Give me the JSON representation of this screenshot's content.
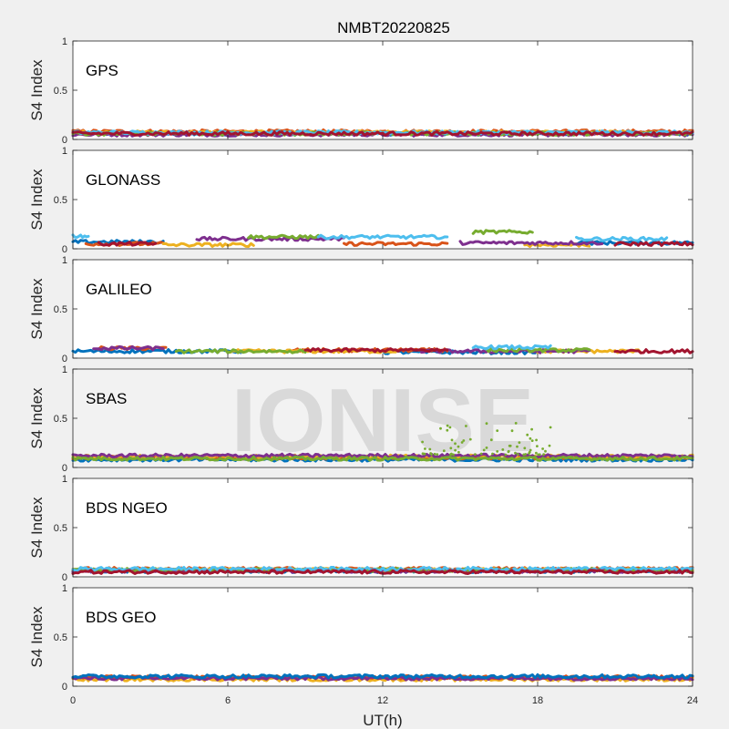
{
  "figure": {
    "title": "NMBT20220825",
    "xlabel": "UT(h)",
    "watermark": "IONISE"
  },
  "chart_data": [
    {
      "type": "scatter",
      "panel": "GPS",
      "ylabel": "S4 Index",
      "xlim": [
        0,
        24
      ],
      "ylim": [
        0,
        1
      ],
      "xticks": [
        0,
        6,
        12,
        18,
        24
      ],
      "yticks": [
        0,
        0.5,
        1
      ],
      "yticklabels": [
        "0",
        "0.5",
        "1"
      ],
      "series_summary": [
        {
          "color": "#0072BD",
          "segments": [
            [
              0,
              24,
              0.06
            ]
          ]
        },
        {
          "color": "#D95319",
          "segments": [
            [
              0,
              24,
              0.08
            ]
          ]
        },
        {
          "color": "#EDB120",
          "segments": [
            [
              0,
              24,
              0.07
            ]
          ]
        },
        {
          "color": "#7E2F8E",
          "segments": [
            [
              0,
              24,
              0.05
            ]
          ]
        },
        {
          "color": "#77AC30",
          "segments": [
            [
              0,
              24,
              0.06
            ]
          ]
        },
        {
          "color": "#4DBEEE",
          "segments": [
            [
              0,
              24,
              0.07
            ]
          ]
        },
        {
          "color": "#A2142F",
          "segments": [
            [
              0,
              24,
              0.06
            ]
          ]
        }
      ]
    },
    {
      "type": "scatter",
      "panel": "GLONASS",
      "ylabel": "S4 Index",
      "xlim": [
        0,
        24
      ],
      "ylim": [
        0,
        1
      ],
      "xticks": [
        0,
        6,
        12,
        18,
        24
      ],
      "yticks": [
        0,
        0.5,
        1
      ],
      "yticklabels": [
        "0",
        "0.5",
        "1"
      ],
      "series_summary": [
        {
          "color": "#0072BD",
          "segments": [
            [
              0,
              3.5,
              0.07
            ],
            [
              19.5,
              24,
              0.06
            ]
          ]
        },
        {
          "color": "#D95319",
          "segments": [
            [
              0.5,
              3.5,
              0.05
            ],
            [
              10.5,
              14.5,
              0.05
            ]
          ]
        },
        {
          "color": "#EDB120",
          "segments": [
            [
              3.5,
              7,
              0.04
            ],
            [
              17.5,
              20,
              0.04
            ]
          ]
        },
        {
          "color": "#7E2F8E",
          "segments": [
            [
              4.8,
              10.5,
              0.1
            ],
            [
              15,
              20.5,
              0.06
            ]
          ]
        },
        {
          "color": "#77AC30",
          "segments": [
            [
              6.8,
              9.5,
              0.12
            ],
            [
              15.5,
              17.8,
              0.17
            ]
          ]
        },
        {
          "color": "#4DBEEE",
          "segments": [
            [
              0,
              0.6,
              0.13
            ],
            [
              9.5,
              14.5,
              0.12
            ],
            [
              19.5,
              23,
              0.1
            ]
          ]
        },
        {
          "color": "#A2142F",
          "segments": [
            [
              1,
              3.2,
              0.05
            ],
            [
              21,
              24,
              0.05
            ]
          ]
        }
      ]
    },
    {
      "type": "scatter",
      "panel": "GALILEO",
      "ylabel": "S4 Index",
      "xlim": [
        0,
        24
      ],
      "ylim": [
        0,
        1
      ],
      "xticks": [
        0,
        6,
        12,
        18,
        24
      ],
      "yticks": [
        0,
        0.5,
        1
      ],
      "yticklabels": [
        "0",
        "0.5",
        "1"
      ],
      "series_summary": [
        {
          "color": "#0072BD",
          "segments": [
            [
              0,
              6.5,
              0.07
            ],
            [
              12,
              18,
              0.06
            ]
          ]
        },
        {
          "color": "#D95319",
          "segments": [
            [
              1,
              3.6,
              0.1
            ],
            [
              8.5,
              14.5,
              0.08
            ]
          ]
        },
        {
          "color": "#EDB120",
          "segments": [
            [
              6,
              12.5,
              0.07
            ],
            [
              18,
              22,
              0.07
            ]
          ]
        },
        {
          "color": "#7E2F8E",
          "segments": [
            [
              0.8,
              3.5,
              0.1
            ],
            [
              13.5,
              20,
              0.07
            ]
          ]
        },
        {
          "color": "#77AC30",
          "segments": [
            [
              4,
              9,
              0.07
            ],
            [
              16,
              20,
              0.08
            ]
          ]
        },
        {
          "color": "#4DBEEE",
          "segments": [
            [
              15.5,
              18.5,
              0.11
            ]
          ]
        },
        {
          "color": "#A2142F",
          "segments": [
            [
              9,
              14.5,
              0.08
            ],
            [
              21,
              24,
              0.07
            ]
          ]
        }
      ]
    },
    {
      "type": "scatter",
      "panel": "SBAS",
      "ylabel": "S4 Index",
      "xlim": [
        0,
        24
      ],
      "ylim": [
        0,
        1
      ],
      "xticks": [
        0,
        6,
        12,
        18,
        24
      ],
      "yticks": [
        0,
        0.5,
        1
      ],
      "yticklabels": [
        "0",
        "0.5",
        "1"
      ],
      "series_summary": [
        {
          "color": "#0072BD",
          "segments": [
            [
              0,
              24,
              0.08
            ]
          ]
        },
        {
          "color": "#D95319",
          "segments": [
            [
              0,
              24,
              0.1
            ]
          ]
        },
        {
          "color": "#EDB120",
          "segments": [
            [
              0,
              24,
              0.11
            ]
          ]
        },
        {
          "color": "#7E2F8E",
          "segments": [
            [
              0,
              24,
              0.12
            ]
          ]
        },
        {
          "color": "#77AC30",
          "segments": [
            [
              0,
              24,
              0.09
            ]
          ]
        }
      ],
      "outliers": {
        "color": "#77AC30",
        "x_range": [
          13.5,
          18.5
        ],
        "y_max": 0.45
      }
    },
    {
      "type": "scatter",
      "panel": "BDS NGEO",
      "ylabel": "S4 Index",
      "xlim": [
        0,
        24
      ],
      "ylim": [
        0,
        1
      ],
      "xticks": [
        0,
        6,
        12,
        18,
        24
      ],
      "yticks": [
        0,
        0.5,
        1
      ],
      "yticklabels": [
        "0",
        "0.5",
        "1"
      ],
      "series_summary": [
        {
          "color": "#0072BD",
          "segments": [
            [
              0,
              24,
              0.06
            ]
          ]
        },
        {
          "color": "#D95319",
          "segments": [
            [
              0,
              24,
              0.08
            ]
          ]
        },
        {
          "color": "#EDB120",
          "segments": [
            [
              0,
              24,
              0.07
            ]
          ]
        },
        {
          "color": "#7E2F8E",
          "segments": [
            [
              0,
              24,
              0.06
            ]
          ]
        },
        {
          "color": "#77AC30",
          "segments": [
            [
              0,
              24,
              0.07
            ]
          ]
        },
        {
          "color": "#4DBEEE",
          "segments": [
            [
              0,
              24,
              0.08
            ]
          ]
        },
        {
          "color": "#A2142F",
          "segments": [
            [
              0,
              24,
              0.05
            ]
          ]
        }
      ]
    },
    {
      "type": "scatter",
      "panel": "BDS GEO",
      "ylabel": "S4 Index",
      "xlim": [
        0,
        24
      ],
      "ylim": [
        0,
        1
      ],
      "xticks": [
        0,
        6,
        12,
        18,
        24
      ],
      "yticks": [
        0,
        0.5,
        1
      ],
      "yticklabels": [
        "0",
        "0.5",
        "1"
      ],
      "series_summary": [
        {
          "color": "#EDB120",
          "segments": [
            [
              0,
              24,
              0.07
            ]
          ]
        },
        {
          "color": "#D95319",
          "segments": [
            [
              0,
              24,
              0.09
            ]
          ]
        },
        {
          "color": "#7E2F8E",
          "segments": [
            [
              0,
              24,
              0.08
            ]
          ]
        },
        {
          "color": "#0072BD",
          "segments": [
            [
              0,
              24,
              0.1
            ]
          ]
        }
      ]
    }
  ]
}
